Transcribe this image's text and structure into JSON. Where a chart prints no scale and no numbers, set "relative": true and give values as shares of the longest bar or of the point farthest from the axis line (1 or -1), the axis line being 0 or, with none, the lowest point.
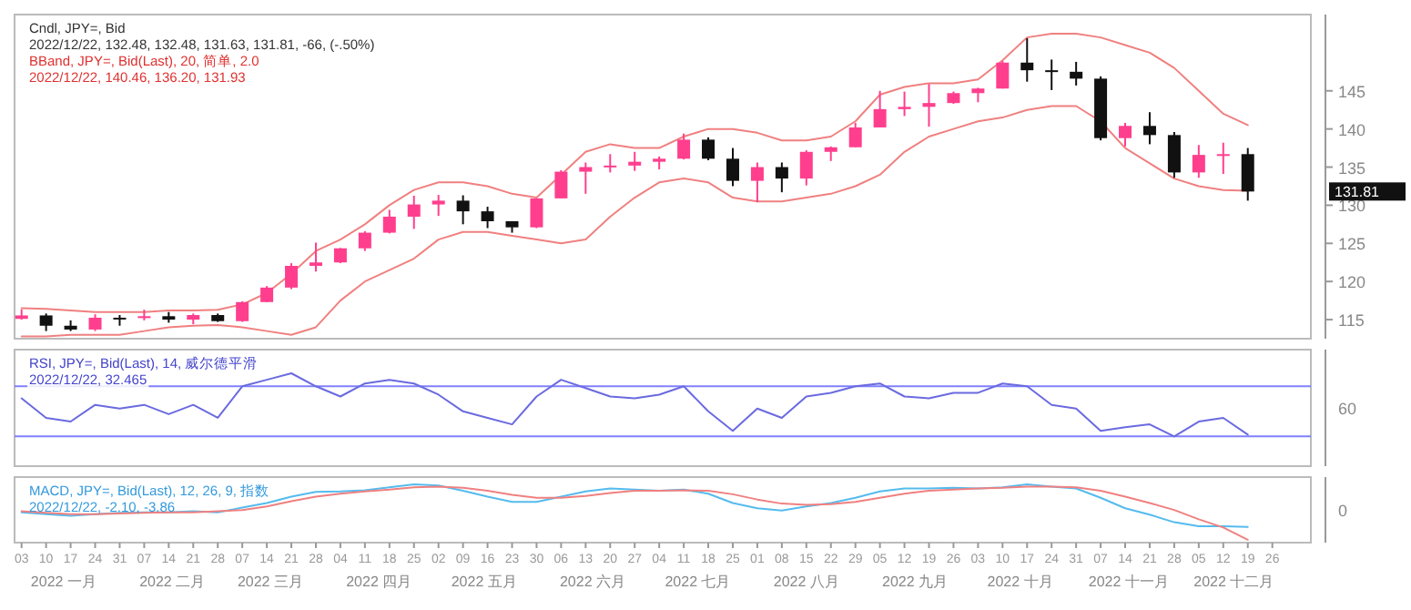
{
  "chart_data": [
    {
      "type": "candlestick",
      "xlim": [
        "2022-01-01",
        "2023-01-06"
      ],
      "ylim": [
        112.5,
        155
      ],
      "yticks": [
        115,
        120,
        125,
        130,
        135,
        140,
        145
      ],
      "tick_labels": "y",
      "annotations": [
        "Cndl, JPY=, Bid",
        "2022/12/22, 132.48, 132.48, 131.63, 131.81, -66, (-.50%)",
        "BBand, JPY=, Bid(Last), 20, 简单, 2.0",
        "2022/12/22, 140.46, 136.20, 131.93",
        "131.81"
      ],
      "x": [
        "2022-01-03",
        "2022-01-10",
        "2022-01-17",
        "2022-01-24",
        "2022-01-31",
        "2022-02-07",
        "2022-02-14",
        "2022-02-21",
        "2022-02-28",
        "2022-03-07",
        "2022-03-14",
        "2022-03-21",
        "2022-03-28",
        "2022-04-04",
        "2022-04-11",
        "2022-04-18",
        "2022-04-25",
        "2022-05-02",
        "2022-05-09",
        "2022-05-16",
        "2022-05-23",
        "2022-05-30",
        "2022-06-06",
        "2022-06-13",
        "2022-06-20",
        "2022-06-27",
        "2022-07-04",
        "2022-07-11",
        "2022-07-18",
        "2022-07-25",
        "2022-08-01",
        "2022-08-08",
        "2022-08-15",
        "2022-08-22",
        "2022-08-29",
        "2022-09-05",
        "2022-09-12",
        "2022-09-19",
        "2022-09-26",
        "2022-10-03",
        "2022-10-10",
        "2022-10-17",
        "2022-10-24",
        "2022-10-31",
        "2022-11-07",
        "2022-11-14",
        "2022-11-21",
        "2022-11-28",
        "2022-12-05",
        "2022-12-12",
        "2022-12-19"
      ],
      "ohlc": [
        [
          115.1,
          116.35,
          115.0,
          115.55
        ],
        [
          115.55,
          115.8,
          113.5,
          114.2
        ],
        [
          114.2,
          114.9,
          113.5,
          113.7
        ],
        [
          113.7,
          115.7,
          113.5,
          115.25
        ],
        [
          115.25,
          115.6,
          114.2,
          115.2
        ],
        [
          115.2,
          116.3,
          114.9,
          115.45
        ],
        [
          115.45,
          116.0,
          114.6,
          115.0
        ],
        [
          115.0,
          115.8,
          114.4,
          115.6
        ],
        [
          115.6,
          115.8,
          114.7,
          114.8
        ],
        [
          114.8,
          117.4,
          114.7,
          117.3
        ],
        [
          117.3,
          119.4,
          117.3,
          119.2
        ],
        [
          119.2,
          122.4,
          119.0,
          122.05
        ],
        [
          122.05,
          125.1,
          121.3,
          122.5
        ],
        [
          122.5,
          124.4,
          122.4,
          124.35
        ],
        [
          124.35,
          126.6,
          124.0,
          126.4
        ],
        [
          126.4,
          129.4,
          126.3,
          128.5
        ],
        [
          128.5,
          131.25,
          126.9,
          130.1
        ],
        [
          130.1,
          131.35,
          128.6,
          130.6
        ],
        [
          130.6,
          131.3,
          127.5,
          129.2
        ],
        [
          129.2,
          129.8,
          127.0,
          127.9
        ],
        [
          127.9,
          127.9,
          126.4,
          127.1
        ],
        [
          127.1,
          130.9,
          127.0,
          130.9
        ],
        [
          130.9,
          134.6,
          130.9,
          134.4
        ],
        [
          134.4,
          135.6,
          131.5,
          135.0
        ],
        [
          135.0,
          136.7,
          134.3,
          135.2
        ],
        [
          135.2,
          137.0,
          134.5,
          135.7
        ],
        [
          135.7,
          136.4,
          134.7,
          136.1
        ],
        [
          136.1,
          139.4,
          136.0,
          138.6
        ],
        [
          138.6,
          138.9,
          135.9,
          136.1
        ],
        [
          136.1,
          137.5,
          132.5,
          133.2
        ],
        [
          133.2,
          135.6,
          130.4,
          135.0
        ],
        [
          135.0,
          135.6,
          131.7,
          133.5
        ],
        [
          133.5,
          137.2,
          132.6,
          137.0
        ],
        [
          137.0,
          137.7,
          135.8,
          137.6
        ],
        [
          137.6,
          140.8,
          137.6,
          140.2
        ],
        [
          140.2,
          145.0,
          140.2,
          142.6
        ],
        [
          142.6,
          144.9,
          141.7,
          142.9
        ],
        [
          142.9,
          145.9,
          140.3,
          143.4
        ],
        [
          143.4,
          144.9,
          143.3,
          144.7
        ],
        [
          144.7,
          145.4,
          143.5,
          145.3
        ],
        [
          145.3,
          148.9,
          145.3,
          148.7
        ],
        [
          148.7,
          151.9,
          146.2,
          147.7
        ],
        [
          147.7,
          149.1,
          145.1,
          147.5
        ],
        [
          147.5,
          148.8,
          145.7,
          146.6
        ],
        [
          146.6,
          146.9,
          138.5,
          138.8
        ],
        [
          138.8,
          140.8,
          137.7,
          140.4
        ],
        [
          140.4,
          142.2,
          138.0,
          139.2
        ],
        [
          139.2,
          139.6,
          133.6,
          134.3
        ],
        [
          134.3,
          137.9,
          133.6,
          136.6
        ],
        [
          136.6,
          138.2,
          134.1,
          136.7
        ],
        [
          136.7,
          137.5,
          130.6,
          131.8
        ]
      ],
      "series": [
        {
          "type": "line",
          "color": "#f08080",
          "values": [
            116.5,
            116.4,
            116.2,
            116.0,
            116.0,
            116.0,
            116.2,
            116.2,
            116.3,
            117.0,
            118.5,
            121.0,
            124.0,
            125.5,
            127.5,
            130.0,
            132.0,
            133.0,
            133.0,
            132.5,
            131.5,
            131.0,
            134.0,
            137.0,
            138.0,
            137.5,
            137.5,
            139.0,
            140.0,
            140.0,
            139.5,
            138.5,
            138.5,
            139.0,
            141.0,
            144.5,
            145.5,
            146.0,
            146.0,
            146.5,
            149.0,
            152.0,
            152.5,
            152.5,
            152.0,
            151.0,
            150.0,
            148.0,
            145.0,
            142.0,
            140.5
          ]
        },
        {
          "type": "line",
          "color": "#f08080",
          "values": [
            112.8,
            112.8,
            113.0,
            113.0,
            113.0,
            113.5,
            114.0,
            114.2,
            114.3,
            114.0,
            113.5,
            113.0,
            114.0,
            117.5,
            120.0,
            121.5,
            123.0,
            125.5,
            126.5,
            126.5,
            126.0,
            125.5,
            125.0,
            125.5,
            128.5,
            131.0,
            133.0,
            133.5,
            133.0,
            131.0,
            130.5,
            130.5,
            131.0,
            131.5,
            132.5,
            134.0,
            137.0,
            139.0,
            140.0,
            141.0,
            141.5,
            142.5,
            143.0,
            143.0,
            141.0,
            137.5,
            135.5,
            133.5,
            132.5,
            132.0,
            131.9
          ]
        }
      ]
    },
    {
      "type": "line",
      "xlim": [
        "2022-01-01",
        "2023-01-06"
      ],
      "relative": true,
      "tick_labels": false,
      "annotations": [
        "RSI, JPY=, Bid(Last), 14, 威尔德平滑",
        "2022/12/22, 32.465",
        "60"
      ],
      "ref_lines": [
        {
          "axis": "y",
          "value": 0.86,
          "color": "#8080ff"
        },
        {
          "axis": "y",
          "value": 0.32,
          "color": "#8080ff"
        }
      ],
      "x": [
        "2022-01-03",
        "2022-01-10",
        "2022-01-17",
        "2022-01-24",
        "2022-01-31",
        "2022-02-07",
        "2022-02-14",
        "2022-02-21",
        "2022-02-28",
        "2022-03-07",
        "2022-03-14",
        "2022-03-21",
        "2022-03-28",
        "2022-04-04",
        "2022-04-11",
        "2022-04-18",
        "2022-04-25",
        "2022-05-02",
        "2022-05-09",
        "2022-05-16",
        "2022-05-23",
        "2022-05-30",
        "2022-06-06",
        "2022-06-13",
        "2022-06-20",
        "2022-06-27",
        "2022-07-04",
        "2022-07-11",
        "2022-07-18",
        "2022-07-25",
        "2022-08-01",
        "2022-08-08",
        "2022-08-15",
        "2022-08-22",
        "2022-08-29",
        "2022-09-05",
        "2022-09-12",
        "2022-09-19",
        "2022-09-26",
        "2022-10-03",
        "2022-10-10",
        "2022-10-17",
        "2022-10-24",
        "2022-10-31",
        "2022-11-07",
        "2022-11-14",
        "2022-11-21",
        "2022-11-28",
        "2022-12-05",
        "2022-12-12",
        "2022-12-19"
      ],
      "series": [
        {
          "color": "#6a6ae0",
          "values": [
            0.73,
            0.52,
            0.48,
            0.66,
            0.62,
            0.66,
            0.56,
            0.66,
            0.52,
            0.86,
            0.93,
            1,
            0.86,
            0.75,
            0.89,
            0.93,
            0.89,
            0.77,
            0.59,
            0.52,
            0.45,
            0.75,
            0.93,
            0.84,
            0.75,
            0.73,
            0.77,
            0.86,
            0.59,
            0.38,
            0.62,
            0.52,
            0.75,
            0.79,
            0.86,
            0.89,
            0.75,
            0.73,
            0.79,
            0.79,
            0.89,
            0.86,
            0.66,
            0.62,
            0.38,
            0.42,
            0.45,
            0.32,
            0.48,
            0.52,
            0.34
          ]
        }
      ]
    },
    {
      "type": "line",
      "xlim": [
        "2022-01-01",
        "2023-01-06"
      ],
      "relative": true,
      "tick_labels": "x",
      "annotations": [
        "MACD, JPY=, Bid(Last), 12, 26, 9, 指数",
        "2022/12/22, -2.10, -3.86",
        "0",
        "2022 一月",
        "2022 二月",
        "2022 三月",
        "2022 四月",
        "2022 五月",
        "2022 六月",
        "2022 七月",
        "2022 八月",
        "2022 九月",
        "2022 十月",
        "2022 十一月",
        "2022 十二月"
      ],
      "xticks": [
        {
          "value": "2022-01-03",
          "label": "03"
        },
        {
          "value": "2022-01-10",
          "label": "10"
        },
        {
          "value": "2022-01-17",
          "label": "17"
        },
        {
          "value": "2022-01-24",
          "label": "24"
        },
        {
          "value": "2022-01-31",
          "label": "31"
        },
        {
          "value": "2022-02-07",
          "label": "07"
        },
        {
          "value": "2022-02-14",
          "label": "14"
        },
        {
          "value": "2022-02-21",
          "label": "21"
        },
        {
          "value": "2022-02-28",
          "label": "28"
        },
        {
          "value": "2022-03-07",
          "label": "07"
        },
        {
          "value": "2022-03-14",
          "label": "14"
        },
        {
          "value": "2022-03-21",
          "label": "21"
        },
        {
          "value": "2022-03-28",
          "label": "28"
        },
        {
          "value": "2022-04-04",
          "label": "04"
        },
        {
          "value": "2022-04-11",
          "label": "11"
        },
        {
          "value": "2022-04-18",
          "label": "18"
        },
        {
          "value": "2022-04-25",
          "label": "25"
        },
        {
          "value": "2022-05-02",
          "label": "02"
        },
        {
          "value": "2022-05-09",
          "label": "09"
        },
        {
          "value": "2022-05-16",
          "label": "16"
        },
        {
          "value": "2022-05-23",
          "label": "23"
        },
        {
          "value": "2022-05-30",
          "label": "30"
        },
        {
          "value": "2022-06-06",
          "label": "06"
        },
        {
          "value": "2022-06-13",
          "label": "13"
        },
        {
          "value": "2022-06-20",
          "label": "20"
        },
        {
          "value": "2022-06-27",
          "label": "27"
        },
        {
          "value": "2022-07-04",
          "label": "04"
        },
        {
          "value": "2022-07-11",
          "label": "11"
        },
        {
          "value": "2022-07-18",
          "label": "18"
        },
        {
          "value": "2022-07-25",
          "label": "25"
        },
        {
          "value": "2022-08-01",
          "label": "01"
        },
        {
          "value": "2022-08-08",
          "label": "08"
        },
        {
          "value": "2022-08-15",
          "label": "15"
        },
        {
          "value": "2022-08-22",
          "label": "22"
        },
        {
          "value": "2022-08-29",
          "label": "29"
        },
        {
          "value": "2022-09-05",
          "label": "05"
        },
        {
          "value": "2022-09-12",
          "label": "12"
        },
        {
          "value": "2022-09-19",
          "label": "19"
        },
        {
          "value": "2022-09-26",
          "label": "26"
        },
        {
          "value": "2022-10-03",
          "label": "03"
        },
        {
          "value": "2022-10-10",
          "label": "10"
        },
        {
          "value": "2022-10-17",
          "label": "17"
        },
        {
          "value": "2022-10-24",
          "label": "24"
        },
        {
          "value": "2022-10-31",
          "label": "31"
        },
        {
          "value": "2022-11-07",
          "label": "07"
        },
        {
          "value": "2022-11-14",
          "label": "14"
        },
        {
          "value": "2022-11-21",
          "label": "21"
        },
        {
          "value": "2022-11-28",
          "label": "28"
        },
        {
          "value": "2022-12-05",
          "label": "05"
        },
        {
          "value": "2022-12-12",
          "label": "12"
        },
        {
          "value": "2022-12-19",
          "label": "19"
        },
        {
          "value": "2022-12-26",
          "label": "26"
        }
      ],
      "x": [
        "2022-01-03",
        "2022-01-10",
        "2022-01-17",
        "2022-01-24",
        "2022-01-31",
        "2022-02-07",
        "2022-02-14",
        "2022-02-21",
        "2022-02-28",
        "2022-03-07",
        "2022-03-14",
        "2022-03-21",
        "2022-03-28",
        "2022-04-04",
        "2022-04-11",
        "2022-04-18",
        "2022-04-25",
        "2022-05-02",
        "2022-05-09",
        "2022-05-16",
        "2022-05-23",
        "2022-05-30",
        "2022-06-06",
        "2022-06-13",
        "2022-06-20",
        "2022-06-27",
        "2022-07-04",
        "2022-07-11",
        "2022-07-18",
        "2022-07-25",
        "2022-08-01",
        "2022-08-08",
        "2022-08-15",
        "2022-08-22",
        "2022-08-29",
        "2022-09-05",
        "2022-09-12",
        "2022-09-19",
        "2022-09-26",
        "2022-10-03",
        "2022-10-10",
        "2022-10-17",
        "2022-10-24",
        "2022-10-31",
        "2022-11-07",
        "2022-11-14",
        "2022-11-21",
        "2022-11-28",
        "2022-12-05",
        "2022-12-12",
        "2022-12-19"
      ],
      "series": [
        {
          "color": "#55bbee",
          "values": [
            0.52,
            0.49,
            0.46,
            0.49,
            0.51,
            0.52,
            0.52,
            0.54,
            0.52,
            0.6,
            0.68,
            0.79,
            0.87,
            0.88,
            0.9,
            0.95,
            1,
            0.98,
            0.89,
            0.79,
            0.7,
            0.7,
            0.79,
            0.88,
            0.93,
            0.91,
            0.89,
            0.91,
            0.84,
            0.68,
            0.59,
            0.55,
            0.62,
            0.68,
            0.77,
            0.88,
            0.93,
            0.93,
            0.94,
            0.93,
            0.95,
            1,
            0.96,
            0.93,
            0.77,
            0.59,
            0.48,
            0.35,
            0.28,
            0.28,
            0.27
          ]
        },
        {
          "color": "#f08080",
          "values": [
            0.54,
            0.51,
            0.49,
            0.49,
            0.5,
            0.51,
            0.52,
            0.52,
            0.54,
            0.56,
            0.62,
            0.71,
            0.79,
            0.84,
            0.88,
            0.91,
            0.95,
            0.96,
            0.94,
            0.89,
            0.82,
            0.77,
            0.77,
            0.8,
            0.85,
            0.89,
            0.89,
            0.9,
            0.89,
            0.83,
            0.74,
            0.67,
            0.65,
            0.66,
            0.7,
            0.77,
            0.84,
            0.89,
            0.91,
            0.93,
            0.94,
            0.96,
            0.96,
            0.95,
            0.89,
            0.79,
            0.68,
            0.56,
            0.4,
            0.26,
            0.05
          ]
        }
      ]
    }
  ]
}
